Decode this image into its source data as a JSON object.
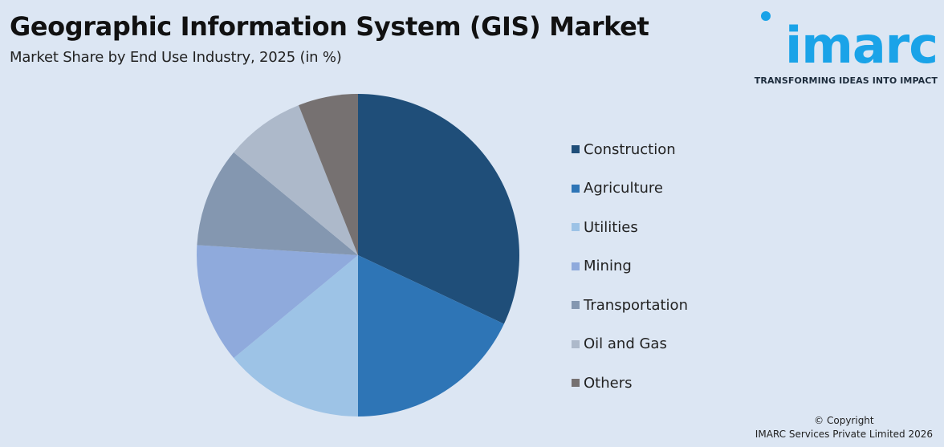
{
  "header": {
    "title": "Geographic Information System (GIS) Market",
    "subtitle": "Market Share by End Use Industry, 2025 (in %)"
  },
  "logo": {
    "wordmark": "imarc",
    "tagline": "TRANSFORMING IDEAS INTO IMPACT",
    "color": "#1aa3e8"
  },
  "chart_data": {
    "type": "pie",
    "title": "Geographic Information System (GIS) Market",
    "subtitle": "Market Share by End Use Industry, 2025 (in %)",
    "legend_position": "right",
    "start_angle": "12 o'clock",
    "direction": "clockwise",
    "categories": [
      "Construction",
      "Agriculture",
      "Utilities",
      "Mining",
      "Transportation",
      "Oil and Gas",
      "Others"
    ],
    "values": [
      32,
      18,
      14,
      12,
      10,
      8,
      6
    ],
    "colors": [
      "#1f4e79",
      "#2e75b6",
      "#9dc3e6",
      "#8faadc",
      "#8497b0",
      "#adb9ca",
      "#767171"
    ]
  },
  "footer": {
    "copyright_line1": "© Copyright",
    "copyright_line2": "IMARC Services Private Limited 2026"
  }
}
